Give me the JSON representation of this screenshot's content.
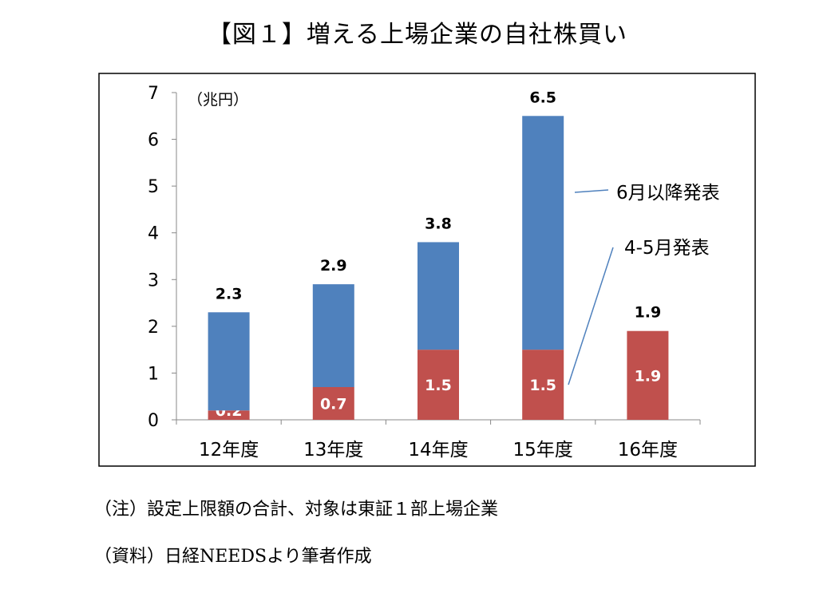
{
  "title": "【図１】増える上場企業の自社株買い",
  "notes": {
    "note1": "（注）設定上限額の合計、対象は東証１部上場企業",
    "note2": "（資料）日経NEEDSより筆者作成"
  },
  "chart_data": {
    "type": "bar",
    "stacked": true,
    "unit_label": "（兆円）",
    "categories": [
      "12年度",
      "13年度",
      "14年度",
      "15年度",
      "16年度"
    ],
    "series": [
      {
        "name": "4-5月発表",
        "color": "#c0504d",
        "values": [
          0.2,
          0.7,
          1.5,
          1.5,
          1.9
        ],
        "labels": [
          "0.2",
          "0.7",
          "1.5",
          "1.5",
          "1.9"
        ]
      },
      {
        "name": "6月以降発表",
        "color": "#4f81bd",
        "values": [
          2.1,
          2.2,
          2.3,
          5.0,
          0
        ]
      }
    ],
    "totals": [
      "2.3",
      "2.9",
      "3.8",
      "6.5",
      "1.9"
    ],
    "ylim": [
      0,
      7
    ],
    "yticks": [
      "0",
      "1",
      "2",
      "3",
      "4",
      "5",
      "6",
      "7"
    ],
    "grid": false,
    "legend": "callout-right"
  }
}
